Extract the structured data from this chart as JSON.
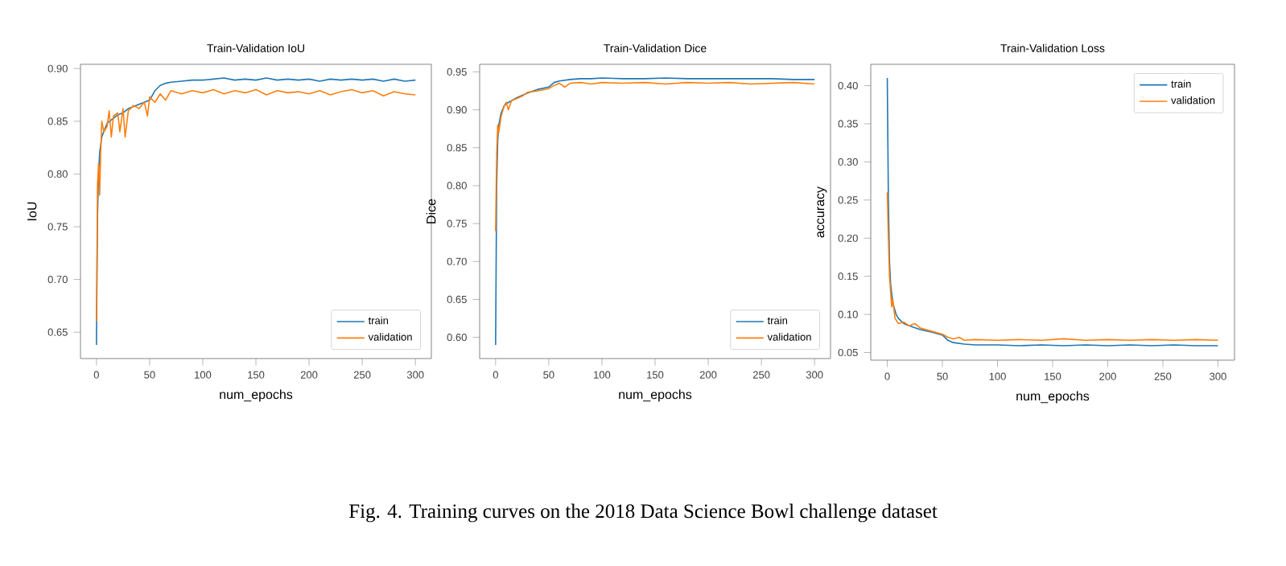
{
  "chart_data": [
    {
      "type": "line",
      "title": "Train-Validation IoU",
      "xlabel": "num_epochs",
      "ylabel": "IoU",
      "xlim": [
        -15,
        315
      ],
      "ylim": [
        0.625,
        0.904
      ],
      "xticks": [
        0,
        50,
        100,
        150,
        200,
        250,
        300
      ],
      "yticks": [
        {
          "value": 0.65,
          "label": "0.65"
        },
        {
          "value": 0.7,
          "label": "0.70"
        },
        {
          "value": 0.75,
          "label": "0.75"
        },
        {
          "value": 0.8,
          "label": "0.80"
        },
        {
          "value": 0.85,
          "label": "0.85"
        },
        {
          "value": 0.9,
          "label": "0.90"
        }
      ],
      "legend": "bottom right",
      "annotations": [
        "Fig. 4.  Training curves on the 2018 Data Science Bowl challenge dataset"
      ],
      "series": [
        {
          "name": "train",
          "color": "#1f77b4",
          "x": [
            0,
            1,
            2,
            3,
            5,
            8,
            10,
            15,
            20,
            25,
            30,
            35,
            40,
            45,
            50,
            55,
            60,
            65,
            70,
            80,
            90,
            100,
            110,
            120,
            130,
            140,
            150,
            160,
            170,
            180,
            190,
            200,
            210,
            220,
            230,
            240,
            250,
            260,
            270,
            280,
            290,
            300
          ],
          "values": [
            0.638,
            0.76,
            0.8,
            0.82,
            0.835,
            0.843,
            0.848,
            0.852,
            0.856,
            0.858,
            0.862,
            0.864,
            0.866,
            0.868,
            0.87,
            0.879,
            0.884,
            0.886,
            0.887,
            0.888,
            0.889,
            0.889,
            0.89,
            0.891,
            0.889,
            0.89,
            0.889,
            0.891,
            0.889,
            0.89,
            0.889,
            0.89,
            0.888,
            0.89,
            0.889,
            0.89,
            0.889,
            0.89,
            0.888,
            0.89,
            0.888,
            0.889
          ]
        },
        {
          "name": "validation",
          "color": "#ff7f0e",
          "x": [
            0,
            1,
            2,
            3,
            4,
            5,
            7,
            10,
            12,
            14,
            16,
            20,
            22,
            25,
            27,
            30,
            35,
            40,
            45,
            48,
            50,
            55,
            60,
            65,
            70,
            80,
            90,
            100,
            110,
            120,
            130,
            140,
            150,
            160,
            170,
            180,
            190,
            200,
            210,
            220,
            230,
            240,
            250,
            260,
            270,
            280,
            290,
            300
          ],
          "values": [
            0.66,
            0.79,
            0.81,
            0.78,
            0.82,
            0.85,
            0.84,
            0.845,
            0.86,
            0.835,
            0.855,
            0.858,
            0.84,
            0.862,
            0.835,
            0.86,
            0.865,
            0.862,
            0.868,
            0.855,
            0.873,
            0.868,
            0.876,
            0.87,
            0.879,
            0.876,
            0.879,
            0.877,
            0.88,
            0.876,
            0.879,
            0.877,
            0.88,
            0.875,
            0.879,
            0.877,
            0.878,
            0.876,
            0.879,
            0.875,
            0.878,
            0.88,
            0.877,
            0.879,
            0.874,
            0.878,
            0.876,
            0.875
          ]
        }
      ]
    },
    {
      "type": "line",
      "title": "Train-Validation Dice",
      "xlabel": "num_epochs",
      "ylabel": "Dice",
      "xlim": [
        -15,
        315
      ],
      "ylim": [
        0.572,
        0.96
      ],
      "xticks": [
        0,
        50,
        100,
        150,
        200,
        250,
        300
      ],
      "yticks": [
        {
          "value": 0.6,
          "label": "0.60"
        },
        {
          "value": 0.65,
          "label": "0.65"
        },
        {
          "value": 0.7,
          "label": "0.70"
        },
        {
          "value": 0.75,
          "label": "0.75"
        },
        {
          "value": 0.8,
          "label": "0.80"
        },
        {
          "value": 0.85,
          "label": "0.85"
        },
        {
          "value": 0.9,
          "label": "0.90"
        },
        {
          "value": 0.95,
          "label": "0.95"
        }
      ],
      "legend": "bottom right",
      "series": [
        {
          "name": "train",
          "color": "#1f77b4",
          "x": [
            0,
            1,
            2,
            3,
            5,
            8,
            10,
            15,
            20,
            30,
            40,
            50,
            55,
            60,
            70,
            80,
            90,
            100,
            120,
            140,
            160,
            180,
            200,
            220,
            240,
            260,
            280,
            300
          ],
          "values": [
            0.59,
            0.8,
            0.86,
            0.88,
            0.895,
            0.905,
            0.908,
            0.912,
            0.916,
            0.922,
            0.927,
            0.93,
            0.936,
            0.938,
            0.94,
            0.941,
            0.941,
            0.942,
            0.941,
            0.941,
            0.942,
            0.941,
            0.941,
            0.941,
            0.941,
            0.941,
            0.94,
            0.94
          ]
        },
        {
          "name": "validation",
          "color": "#ff7f0e",
          "x": [
            0,
            1,
            2,
            3,
            5,
            8,
            10,
            12,
            15,
            20,
            25,
            30,
            40,
            50,
            55,
            60,
            65,
            70,
            80,
            90,
            100,
            120,
            140,
            160,
            180,
            200,
            220,
            240,
            260,
            280,
            300
          ],
          "values": [
            0.74,
            0.84,
            0.88,
            0.87,
            0.89,
            0.905,
            0.91,
            0.9,
            0.912,
            0.915,
            0.918,
            0.923,
            0.925,
            0.928,
            0.932,
            0.935,
            0.93,
            0.935,
            0.936,
            0.934,
            0.936,
            0.935,
            0.936,
            0.934,
            0.936,
            0.935,
            0.936,
            0.934,
            0.935,
            0.936,
            0.934
          ]
        }
      ]
    },
    {
      "type": "line",
      "title": "Train-Validation Loss",
      "xlabel": "num_epochs",
      "ylabel": "accuracy",
      "xlim": [
        -15,
        315
      ],
      "ylim": [
        0.04,
        0.428
      ],
      "xticks": [
        0,
        50,
        100,
        150,
        200,
        250,
        300
      ],
      "yticks": [
        {
          "value": 0.05,
          "label": "0.05"
        },
        {
          "value": 0.1,
          "label": "0.10"
        },
        {
          "value": 0.15,
          "label": "0.15"
        },
        {
          "value": 0.2,
          "label": "0.20"
        },
        {
          "value": 0.25,
          "label": "0.25"
        },
        {
          "value": 0.3,
          "label": "0.30"
        },
        {
          "value": 0.35,
          "label": "0.35"
        },
        {
          "value": 0.4,
          "label": "0.40"
        }
      ],
      "legend": "top right",
      "series": [
        {
          "name": "train",
          "color": "#1f77b4",
          "x": [
            0,
            1,
            2,
            3,
            5,
            8,
            10,
            15,
            20,
            30,
            40,
            50,
            55,
            60,
            70,
            80,
            100,
            120,
            140,
            160,
            180,
            200,
            220,
            240,
            260,
            280,
            300
          ],
          "values": [
            0.41,
            0.25,
            0.17,
            0.14,
            0.115,
            0.1,
            0.095,
            0.088,
            0.085,
            0.08,
            0.077,
            0.073,
            0.066,
            0.063,
            0.061,
            0.06,
            0.06,
            0.059,
            0.06,
            0.059,
            0.06,
            0.059,
            0.06,
            0.059,
            0.06,
            0.059,
            0.059
          ]
        },
        {
          "name": "validation",
          "color": "#ff7f0e",
          "x": [
            0,
            1,
            2,
            3,
            4,
            5,
            7,
            10,
            15,
            20,
            25,
            30,
            40,
            50,
            55,
            60,
            65,
            70,
            80,
            100,
            120,
            140,
            160,
            180,
            200,
            220,
            240,
            260,
            280,
            300
          ],
          "values": [
            0.26,
            0.2,
            0.15,
            0.13,
            0.11,
            0.12,
            0.095,
            0.088,
            0.09,
            0.085,
            0.088,
            0.082,
            0.078,
            0.074,
            0.07,
            0.068,
            0.07,
            0.066,
            0.067,
            0.066,
            0.067,
            0.066,
            0.068,
            0.066,
            0.067,
            0.066,
            0.067,
            0.066,
            0.067,
            0.066
          ]
        }
      ]
    }
  ]
}
